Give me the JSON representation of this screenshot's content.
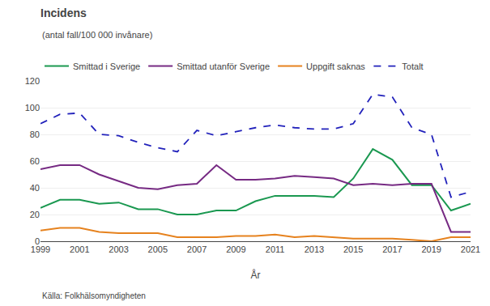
{
  "chart_data": {
    "type": "line",
    "title": "Incidens",
    "subtitle": "(antal fall/100 000 invånare)",
    "x_label": "År",
    "annotations": [
      "Källa: Folkhälsomyndigheten"
    ],
    "x": [
      1999,
      2000,
      2001,
      2002,
      2003,
      2004,
      2005,
      2006,
      2007,
      2008,
      2009,
      2010,
      2011,
      2012,
      2013,
      2014,
      2015,
      2016,
      2017,
      2018,
      2019,
      2020,
      2021
    ],
    "series": [
      {
        "name": "Smittad i Sverige",
        "color": "#1a9850",
        "line_style": "solid",
        "values": [
          25,
          31,
          31,
          28,
          29,
          24,
          24,
          20,
          20,
          23,
          23,
          30,
          34,
          34,
          34,
          33,
          47,
          69,
          61,
          42,
          42,
          23,
          28
        ]
      },
      {
        "name": "Smittad utanför Sverige",
        "color": "#762a83",
        "line_style": "solid",
        "values": [
          54,
          57,
          57,
          50,
          45,
          40,
          39,
          42,
          43,
          57,
          46,
          46,
          47,
          49,
          48,
          47,
          42,
          43,
          42,
          43,
          43,
          7,
          7
        ]
      },
      {
        "name": "Uppgift saknas",
        "color": "#e6821e",
        "line_style": "solid",
        "values": [
          8,
          10,
          10,
          7,
          6,
          6,
          6,
          3,
          3,
          3,
          4,
          4,
          5,
          3,
          4,
          3,
          2,
          2,
          2,
          1,
          0,
          3,
          3
        ]
      },
      {
        "name": "Totalt",
        "color": "#2222bb",
        "line_style": "dashed",
        "values": [
          88,
          95,
          96,
          80,
          79,
          74,
          70,
          67,
          83,
          79,
          82,
          85,
          87,
          85,
          84,
          84,
          88,
          110,
          108,
          85,
          80,
          33,
          37
        ]
      }
    ],
    "xlim": [
      1999,
      2021
    ],
    "xticks": [
      1999,
      2001,
      2003,
      2005,
      2007,
      2009,
      2011,
      2013,
      2015,
      2017,
      2019,
      2021
    ],
    "ylim": [
      0,
      120
    ],
    "yticks": [
      0,
      20,
      40,
      60,
      80,
      100,
      120
    ],
    "grid": true,
    "legend": "top"
  }
}
